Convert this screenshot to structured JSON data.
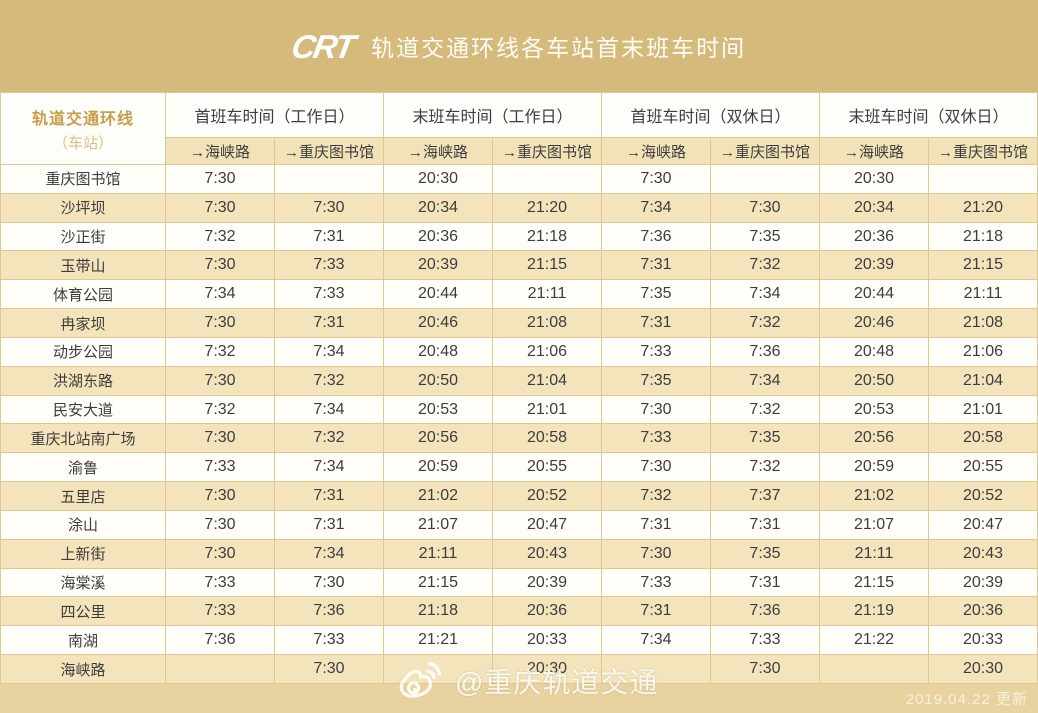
{
  "banner": {
    "logo_text": "CRT",
    "title": "轨道交通环线各车站首末班车时间"
  },
  "table": {
    "corner": {
      "line1": "轨道交通环线",
      "line2": "（车站）"
    },
    "groups": [
      "首班车时间（工作日）",
      "末班车时间（工作日）",
      "首班车时间（双休日）",
      "末班车时间（双休日）"
    ],
    "directions": [
      "→海峡路",
      "→重庆图书馆"
    ],
    "rows": [
      {
        "station": "重庆图书馆",
        "times": [
          "7:30",
          "",
          "20:30",
          "",
          "7:30",
          "",
          "20:30",
          ""
        ]
      },
      {
        "station": "沙坪坝",
        "times": [
          "7:30",
          "7:30",
          "20:34",
          "21:20",
          "7:34",
          "7:30",
          "20:34",
          "21:20"
        ]
      },
      {
        "station": "沙正街",
        "times": [
          "7:32",
          "7:31",
          "20:36",
          "21:18",
          "7:36",
          "7:35",
          "20:36",
          "21:18"
        ]
      },
      {
        "station": "玉带山",
        "times": [
          "7:30",
          "7:33",
          "20:39",
          "21:15",
          "7:31",
          "7:32",
          "20:39",
          "21:15"
        ]
      },
      {
        "station": "体育公园",
        "times": [
          "7:34",
          "7:33",
          "20:44",
          "21:11",
          "7:35",
          "7:34",
          "20:44",
          "21:11"
        ]
      },
      {
        "station": "冉家坝",
        "times": [
          "7:30",
          "7:31",
          "20:46",
          "21:08",
          "7:31",
          "7:32",
          "20:46",
          "21:08"
        ]
      },
      {
        "station": "动步公园",
        "times": [
          "7:32",
          "7:34",
          "20:48",
          "21:06",
          "7:33",
          "7:36",
          "20:48",
          "21:06"
        ]
      },
      {
        "station": "洪湖东路",
        "times": [
          "7:30",
          "7:32",
          "20:50",
          "21:04",
          "7:35",
          "7:34",
          "20:50",
          "21:04"
        ]
      },
      {
        "station": "民安大道",
        "times": [
          "7:32",
          "7:34",
          "20:53",
          "21:01",
          "7:30",
          "7:32",
          "20:53",
          "21:01"
        ]
      },
      {
        "station": "重庆北站南广场",
        "times": [
          "7:30",
          "7:32",
          "20:56",
          "20:58",
          "7:33",
          "7:35",
          "20:56",
          "20:58"
        ]
      },
      {
        "station": "渝鲁",
        "times": [
          "7:33",
          "7:34",
          "20:59",
          "20:55",
          "7:30",
          "7:32",
          "20:59",
          "20:55"
        ]
      },
      {
        "station": "五里店",
        "times": [
          "7:30",
          "7:31",
          "21:02",
          "20:52",
          "7:32",
          "7:37",
          "21:02",
          "20:52"
        ]
      },
      {
        "station": "涂山",
        "times": [
          "7:30",
          "7:31",
          "21:07",
          "20:47",
          "7:31",
          "7:31",
          "21:07",
          "20:47"
        ]
      },
      {
        "station": "上新街",
        "times": [
          "7:30",
          "7:34",
          "21:11",
          "20:43",
          "7:30",
          "7:35",
          "21:11",
          "20:43"
        ]
      },
      {
        "station": "海棠溪",
        "times": [
          "7:33",
          "7:30",
          "21:15",
          "20:39",
          "7:33",
          "7:31",
          "21:15",
          "20:39"
        ]
      },
      {
        "station": "四公里",
        "times": [
          "7:33",
          "7:36",
          "21:18",
          "20:36",
          "7:31",
          "7:36",
          "21:19",
          "20:36"
        ]
      },
      {
        "station": "南湖",
        "times": [
          "7:36",
          "7:33",
          "21:21",
          "20:33",
          "7:34",
          "7:33",
          "21:22",
          "20:33"
        ]
      },
      {
        "station": "海峡路",
        "times": [
          "",
          "7:30",
          "",
          "20:30",
          "",
          "7:30",
          "",
          "20:30"
        ]
      }
    ]
  },
  "footer": {
    "watermark": "@重庆轨道交通",
    "updated": "2019.04.22 更新"
  },
  "colors": {
    "banner_gold": "#d5ba7b",
    "subheader_beige": "#f1e2b8",
    "row_beige": "#f3e4bc",
    "row_white": "#fffef9",
    "bottom_strip": "#e8d3a0",
    "corner_text_gold": "#c79f4a",
    "text_dark": "#3d3d3d"
  }
}
